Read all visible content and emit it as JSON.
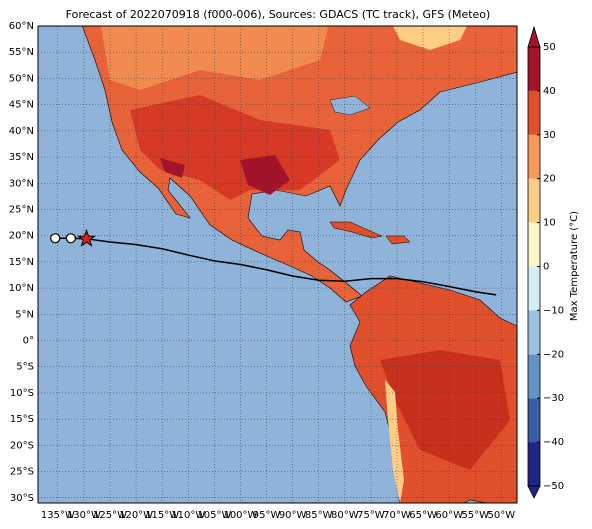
{
  "title": "Forecast of 2022070918 (f000-006), Sources: GDACS (TC track), GFS (Meteo)",
  "map": {
    "lonlim": [
      -138.8,
      -47
    ],
    "latlim": [
      -31,
      60
    ],
    "lat_ticks": [
      {
        "value": 60,
        "label": "60°N"
      },
      {
        "value": 55,
        "label": "55°N"
      },
      {
        "value": 50,
        "label": "50°N"
      },
      {
        "value": 45,
        "label": "45°N"
      },
      {
        "value": 40,
        "label": "40°N"
      },
      {
        "value": 35,
        "label": "35°N"
      },
      {
        "value": 30,
        "label": "30°N"
      },
      {
        "value": 25,
        "label": "25°N"
      },
      {
        "value": 20,
        "label": "20°N"
      },
      {
        "value": 15,
        "label": "15°N"
      },
      {
        "value": 10,
        "label": "10°N"
      },
      {
        "value": 5,
        "label": "5°N"
      },
      {
        "value": 0,
        "label": "0°"
      },
      {
        "value": -5,
        "label": "5°S"
      },
      {
        "value": -10,
        "label": "10°S"
      },
      {
        "value": -15,
        "label": "15°S"
      },
      {
        "value": -20,
        "label": "20°S"
      },
      {
        "value": -25,
        "label": "25°S"
      },
      {
        "value": -30,
        "label": "30°S"
      }
    ],
    "lon_ticks": [
      {
        "value": -135,
        "label": "135°W"
      },
      {
        "value": -130,
        "label": "130°W"
      },
      {
        "value": -125,
        "label": "125°W"
      },
      {
        "value": -120,
        "label": "120°W"
      },
      {
        "value": -115,
        "label": "115°W"
      },
      {
        "value": -110,
        "label": "110°W"
      },
      {
        "value": -105,
        "label": "105°W"
      },
      {
        "value": -100,
        "label": "100°W"
      },
      {
        "value": -95,
        "label": "95°W"
      },
      {
        "value": -90,
        "label": "90°W"
      },
      {
        "value": -85,
        "label": "85°W"
      },
      {
        "value": -80,
        "label": "80°W"
      },
      {
        "value": -75,
        "label": "75°W"
      },
      {
        "value": -70,
        "label": "70°W"
      },
      {
        "value": -65,
        "label": "65°W"
      },
      {
        "value": -60,
        "label": "60°W"
      },
      {
        "value": -55,
        "label": "55°W"
      },
      {
        "value": -50,
        "label": "50°W"
      }
    ],
    "track": {
      "lon": [
        -135.5,
        -132.5,
        -129.5,
        -125,
        -120,
        -115,
        -110,
        -105,
        -100,
        -95,
        -90,
        -85,
        -80,
        -75,
        -70,
        -65,
        -60,
        -55,
        -51
      ],
      "lat": [
        19.5,
        19.5,
        19.4,
        18.8,
        18.3,
        17.5,
        16.3,
        15.2,
        14.5,
        13.5,
        12.3,
        11.5,
        11.3,
        11.8,
        11.8,
        11.2,
        10.3,
        9.3,
        8.7
      ]
    }
  },
  "colorbar": {
    "label": "Max Temperature (°C)",
    "lim": [
      -50,
      50
    ],
    "ticks": [
      50,
      40,
      30,
      20,
      10,
      0,
      {
        "value": -10,
        "label": "−10"
      },
      {
        "value": -20,
        "label": "−20"
      },
      {
        "value": -30,
        "label": "−30"
      },
      {
        "value": -40,
        "label": "−40"
      },
      {
        "value": -50,
        "label": "−50"
      }
    ],
    "colors": [
      "#1f2585",
      "#3a5da8",
      "#6592c4",
      "#9cc3de",
      "#d4ecf2",
      "#fdf6c8",
      "#fdcd85",
      "#f89a55",
      "#e0502d",
      "#a3142a"
    ]
  }
}
